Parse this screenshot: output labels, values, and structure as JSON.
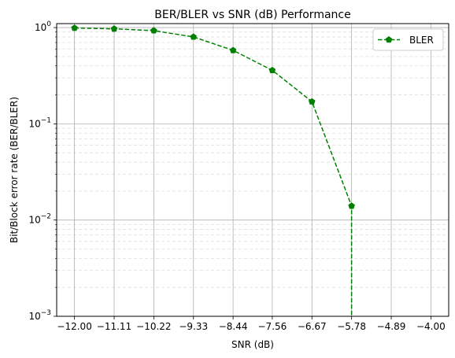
{
  "chart_data": {
    "type": "line",
    "title": "BER/BLER vs SNR (dB) Performance",
    "xlabel": "SNR (dB)",
    "ylabel": "Bit/Block error rate (BER/BLER)",
    "x_ticks": [
      "−12.00",
      "−11.11",
      "−10.22",
      "−9.33",
      "−8.44",
      "−7.56",
      "−6.67",
      "−5.78",
      "−4.89",
      "−4.00"
    ],
    "x_tick_values": [
      -12.0,
      -11.11,
      -10.22,
      -9.33,
      -8.44,
      -7.56,
      -6.67,
      -5.78,
      -4.89,
      -4.0
    ],
    "xlim": [
      -12.4,
      -3.6
    ],
    "y_scale": "log",
    "ylim": [
      0.001,
      1.1
    ],
    "y_ticks": [
      {
        "value": 0.001,
        "base": "10",
        "exp": "−3"
      },
      {
        "value": 0.01,
        "base": "10",
        "exp": "−2"
      },
      {
        "value": 0.1,
        "base": "10",
        "exp": "−1"
      },
      {
        "value": 1,
        "base": "10",
        "exp": "0"
      }
    ],
    "grid": true,
    "legend_position": "top-right",
    "series": [
      {
        "name": "BLER",
        "color": "#008000",
        "line_style": "dashed",
        "marker": "pentagon",
        "x": [
          -12.0,
          -11.11,
          -10.22,
          -9.33,
          -8.44,
          -7.56,
          -6.67,
          -5.78,
          -4.89,
          -4.0
        ],
        "y": [
          0.99,
          0.97,
          0.93,
          0.8,
          0.58,
          0.36,
          0.17,
          0.014,
          0,
          0
        ]
      }
    ]
  }
}
